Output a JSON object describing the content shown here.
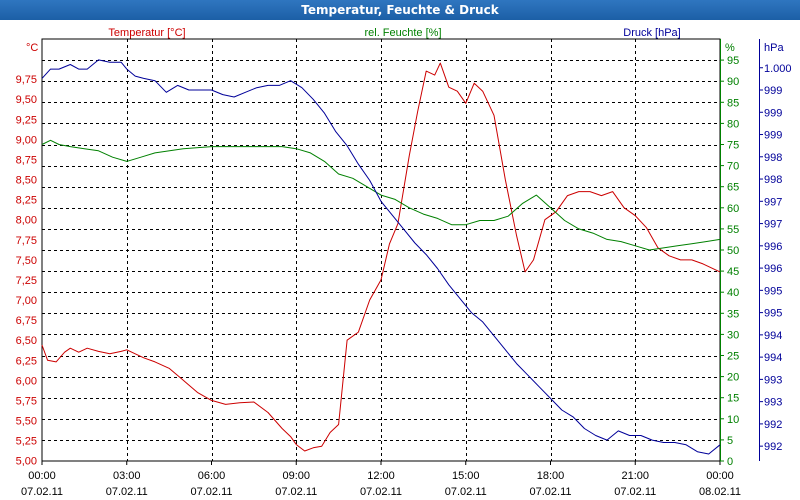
{
  "window": {
    "title": "Temperatur, Feuchte & Druck"
  },
  "chart_data": {
    "type": "line",
    "title": "Temperatur, Feuchte & Druck",
    "x_tick_labels": [
      [
        "00:00",
        "07.02.11"
      ],
      [
        "03:00",
        "07.02.11"
      ],
      [
        "06:00",
        "07.02.11"
      ],
      [
        "09:00",
        "07.02.11"
      ],
      [
        "12:00",
        "07.02.11"
      ],
      [
        "15:00",
        "07.02.11"
      ],
      [
        "18:00",
        "07.02.11"
      ],
      [
        "21:00",
        "07.02.11"
      ],
      [
        "00:00",
        "08.02.11"
      ]
    ],
    "xlim": [
      0,
      24
    ],
    "axes": {
      "temperature": {
        "series_label": "Temperatur [°C]",
        "unit": "°C",
        "color": "#cc0000",
        "ylim": [
          4.9956,
          10.25
        ],
        "tick_values": [
          5.0,
          5.25,
          5.5,
          5.75,
          6.0,
          6.25,
          6.5,
          6.75,
          7.0,
          7.25,
          7.5,
          7.75,
          8.0,
          8.25,
          8.5,
          8.75,
          9.0,
          9.25,
          9.5,
          9.75
        ],
        "tick_labels": [
          "5,00",
          "5,25",
          "5,50",
          "5,75",
          "6,00",
          "6,25",
          "6,50",
          "6,75",
          "7,00",
          "7,25",
          "7,50",
          "7,75",
          "8,00",
          "8,25",
          "8,50",
          "8,75",
          "9,00",
          "9,25",
          "9,50",
          "9,75"
        ]
      },
      "humidity": {
        "series_label": "rel. Feuchte [%]",
        "unit": "%",
        "color": "#008000",
        "ylim": [
          0,
          100
        ],
        "tick_values": [
          0,
          5,
          10,
          15,
          20,
          25,
          30,
          35,
          40,
          45,
          50,
          55,
          60,
          65,
          70,
          75,
          80,
          85,
          90,
          95
        ],
        "tick_labels": [
          "0",
          "5",
          "10",
          "15",
          "20",
          "25",
          "30",
          "35",
          "40",
          "45",
          "50",
          "55",
          "60",
          "65",
          "70",
          "75",
          "80",
          "85",
          "90",
          "95"
        ]
      },
      "pressure": {
        "series_label": "Druck [hPa]",
        "unit": "hPa",
        "color": "#000099",
        "ylim": [
          991.5,
          1000.6
        ],
        "tick_values": [
          991.82,
          992.3,
          992.78,
          993.26,
          993.74,
          994.22,
          994.7,
          995.18,
          995.66,
          996.14,
          996.62,
          997.1,
          997.58,
          998.06,
          998.54,
          999.02,
          999.5,
          999.98
        ],
        "tick_labels": [
          "992",
          "992",
          "993",
          "993",
          "994",
          "994",
          "995",
          "995",
          "996",
          "996",
          "997",
          "997",
          "998",
          "998",
          "999",
          "999",
          "999",
          "1.000"
        ]
      }
    },
    "grid": true,
    "series": [
      {
        "name": "Temperatur [°C]",
        "axis": "temperature",
        "color": "#cc0000",
        "x": [
          0,
          0.2,
          0.5,
          0.8,
          1.0,
          1.3,
          1.6,
          2.0,
          2.4,
          2.8,
          3.0,
          3.3,
          3.6,
          4.0,
          4.5,
          5.0,
          5.5,
          6.0,
          6.5,
          7.0,
          7.5,
          8.0,
          8.5,
          8.8,
          9.0,
          9.3,
          9.6,
          9.9,
          10.2,
          10.5,
          10.8,
          11.2,
          11.6,
          12.0,
          12.3,
          12.6,
          13.0,
          13.3,
          13.6,
          13.9,
          14.1,
          14.4,
          14.7,
          15.0,
          15.3,
          15.6,
          16.0,
          16.4,
          16.8,
          17.1,
          17.4,
          17.8,
          18.2,
          18.6,
          19.0,
          19.4,
          19.8,
          20.2,
          20.6,
          21.0,
          21.4,
          21.8,
          22.2,
          22.6,
          23.0,
          23.4,
          23.7,
          24.0
        ],
        "values": [
          6.44,
          6.25,
          6.23,
          6.35,
          6.4,
          6.35,
          6.4,
          6.36,
          6.33,
          6.36,
          6.38,
          6.33,
          6.28,
          6.23,
          6.15,
          6.0,
          5.85,
          5.75,
          5.7,
          5.72,
          5.73,
          5.6,
          5.4,
          5.3,
          5.2,
          5.12,
          5.16,
          5.18,
          5.35,
          5.45,
          6.5,
          6.6,
          7.0,
          7.25,
          7.7,
          7.95,
          8.8,
          9.35,
          9.85,
          9.8,
          9.95,
          9.65,
          9.6,
          9.45,
          9.7,
          9.6,
          9.3,
          8.5,
          7.8,
          7.35,
          7.5,
          8.0,
          8.1,
          8.3,
          8.35,
          8.35,
          8.3,
          8.35,
          8.15,
          8.05,
          7.9,
          7.65,
          7.55,
          7.5,
          7.5,
          7.45,
          7.4,
          7.35
        ]
      },
      {
        "name": "rel. Feuchte [%]",
        "axis": "humidity",
        "color": "#008000",
        "x": [
          0,
          0.3,
          0.6,
          1.0,
          1.5,
          2.0,
          2.5,
          3.0,
          3.5,
          4.0,
          5.0,
          6.0,
          7.0,
          8.0,
          8.5,
          9.0,
          9.5,
          10.0,
          10.5,
          11.0,
          11.5,
          12.0,
          12.5,
          13.0,
          13.5,
          14.0,
          14.5,
          15.0,
          15.5,
          16.0,
          16.5,
          17.0,
          17.5,
          18.0,
          18.5,
          19.0,
          19.5,
          20.0,
          20.5,
          21.0,
          21.5,
          22.0,
          22.5,
          23.0,
          23.5,
          24.0
        ],
        "values": [
          75,
          76,
          75,
          74.5,
          74,
          73.5,
          72,
          71,
          72,
          73,
          74,
          74.5,
          74.5,
          74.5,
          74.5,
          74,
          73,
          71,
          68,
          67,
          65,
          63,
          62,
          60,
          58.5,
          57.5,
          56,
          56,
          57,
          57,
          58,
          61,
          63,
          60,
          57,
          55,
          54,
          52.5,
          52,
          51,
          50,
          50.5,
          51,
          51.5,
          52,
          52.5
        ]
      },
      {
        "name": "Druck [hPa]",
        "axis": "pressure",
        "color": "#000099",
        "x": [
          0,
          0.3,
          0.6,
          1.0,
          1.3,
          1.6,
          2.0,
          2.4,
          2.8,
          3.0,
          3.3,
          3.6,
          4.0,
          4.4,
          4.8,
          5.2,
          5.6,
          6.0,
          6.4,
          6.8,
          7.2,
          7.6,
          8.0,
          8.4,
          8.8,
          9.2,
          9.6,
          10.0,
          10.4,
          10.8,
          11.2,
          11.6,
          12.0,
          12.4,
          12.8,
          13.2,
          13.6,
          14.0,
          14.4,
          14.8,
          15.2,
          15.6,
          16.0,
          16.4,
          16.8,
          17.2,
          17.6,
          18.0,
          18.4,
          18.8,
          19.2,
          19.6,
          20.0,
          20.4,
          20.8,
          21.2,
          21.6,
          22.0,
          22.4,
          22.8,
          23.2,
          23.6,
          24.0
        ],
        "values": [
          999.75,
          999.95,
          999.95,
          1000.05,
          999.95,
          999.95,
          1000.15,
          1000.1,
          1000.1,
          999.95,
          999.8,
          999.75,
          999.7,
          999.45,
          999.6,
          999.5,
          999.5,
          999.5,
          999.4,
          999.35,
          999.45,
          999.55,
          999.6,
          999.6,
          999.7,
          999.55,
          999.3,
          999.0,
          998.6,
          998.3,
          997.9,
          997.55,
          997.1,
          996.8,
          996.5,
          996.2,
          995.95,
          995.65,
          995.3,
          995.0,
          994.7,
          994.5,
          994.2,
          993.9,
          993.6,
          993.35,
          993.1,
          992.85,
          992.6,
          992.45,
          992.2,
          992.05,
          991.95,
          992.15,
          992.05,
          992.05,
          991.95,
          991.9,
          991.9,
          991.85,
          991.7,
          991.65,
          991.85
        ]
      }
    ]
  }
}
